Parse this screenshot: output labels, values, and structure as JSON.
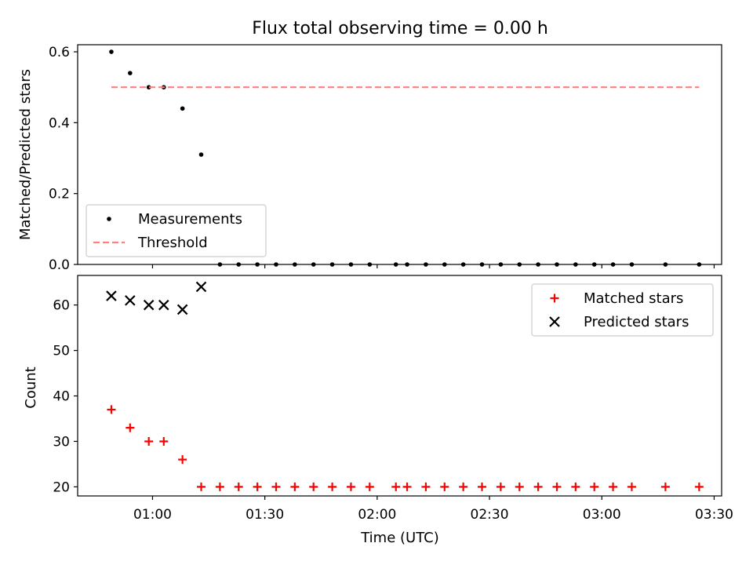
{
  "chart_data": {
    "type": "scatter",
    "title": "Flux total observing time = 0.00 h",
    "xlabel": "Time (UTC)",
    "x_ticks": [
      "01:00",
      "01:30",
      "02:00",
      "02:30",
      "03:00",
      "03:30"
    ],
    "x_tick_minutes": [
      60,
      90,
      120,
      150,
      180,
      210
    ],
    "xlim_minutes": [
      40,
      212
    ],
    "panels": [
      {
        "ylabel": "Matched/Predicted stars",
        "ylim": [
          0,
          0.62
        ],
        "y_ticks": [
          0.0,
          0.2,
          0.4,
          0.6
        ],
        "y_tick_labels": [
          "0.0",
          "0.2",
          "0.4",
          "0.6"
        ],
        "legend": {
          "position": "lower-left",
          "entries": [
            "Measurements",
            "Threshold"
          ]
        },
        "series": [
          {
            "name": "Measurements",
            "marker": "dot",
            "color": "#000000",
            "x_minutes": [
              49,
              54,
              59,
              63,
              68,
              73,
              78,
              83,
              88,
              93,
              98,
              103,
              108,
              113,
              118,
              125,
              128,
              133,
              138,
              143,
              148,
              153,
              158,
              163,
              168,
              173,
              178,
              183,
              188,
              197,
              206
            ],
            "x_times": [
              "00:49",
              "00:54",
              "00:59",
              "01:03",
              "01:08",
              "01:13",
              "01:18",
              "01:23",
              "01:28",
              "01:33",
              "01:38",
              "01:43",
              "01:48",
              "01:53",
              "01:58",
              "02:05",
              "02:08",
              "02:13",
              "02:18",
              "02:23",
              "02:28",
              "02:33",
              "02:38",
              "02:43",
              "02:48",
              "02:53",
              "02:58",
              "03:03",
              "03:08",
              "03:17",
              "03:26"
            ],
            "y": [
              0.6,
              0.54,
              0.5,
              0.5,
              0.44,
              0.31,
              0,
              0,
              0,
              0,
              0,
              0,
              0,
              0,
              0,
              0,
              0,
              0,
              0,
              0,
              0,
              0,
              0,
              0,
              0,
              0,
              0,
              0,
              0,
              0,
              0
            ]
          },
          {
            "name": "Threshold",
            "marker": "dashed-line",
            "color": "#ff7f7f",
            "x_minutes": [
              49,
              206
            ],
            "y": [
              0.5,
              0.5
            ]
          }
        ]
      },
      {
        "ylabel": "Count",
        "ylim": [
          18,
          66.5
        ],
        "y_ticks": [
          20,
          30,
          40,
          50,
          60
        ],
        "y_tick_labels": [
          "20",
          "30",
          "40",
          "50",
          "60"
        ],
        "legend": {
          "position": "upper-right",
          "entries": [
            "Matched stars",
            "Predicted stars"
          ]
        },
        "series": [
          {
            "name": "Matched stars",
            "marker": "plus",
            "color": "#ff0000",
            "x_minutes": [
              49,
              54,
              59,
              63,
              68,
              73,
              78,
              83,
              88,
              93,
              98,
              103,
              108,
              113,
              118,
              125,
              128,
              133,
              138,
              143,
              148,
              153,
              158,
              163,
              168,
              173,
              178,
              183,
              188,
              197,
              206
            ],
            "y": [
              37,
              33,
              30,
              30,
              26,
              20,
              20,
              20,
              20,
              20,
              20,
              20,
              20,
              20,
              20,
              20,
              20,
              20,
              20,
              20,
              20,
              20,
              20,
              20,
              20,
              20,
              20,
              20,
              20,
              20,
              20
            ]
          },
          {
            "name": "Predicted stars",
            "marker": "x",
            "color": "#000000",
            "x_minutes": [
              49,
              54,
              59,
              63,
              68,
              73
            ],
            "y": [
              62,
              61,
              60,
              60,
              59,
              64
            ]
          }
        ]
      }
    ]
  }
}
